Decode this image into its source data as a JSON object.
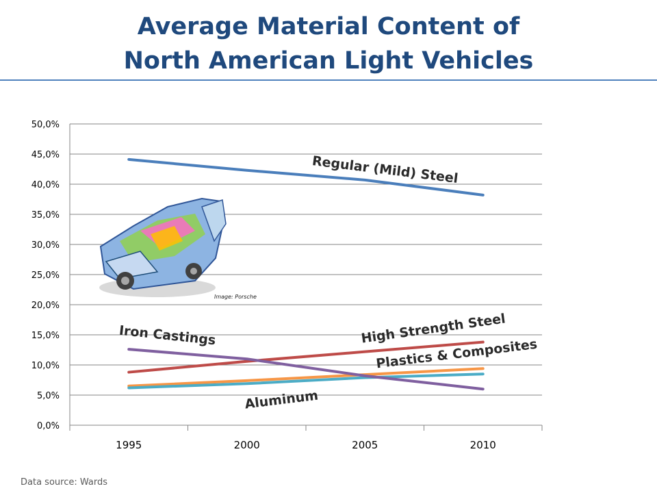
{
  "title_line1": "Average Material Content of",
  "title_line2": "North American Light Vehicles",
  "source": "Data source: Wards",
  "image_credit": "Image: Porsche",
  "chart_data": {
    "type": "line",
    "x": [
      "1995",
      "2000",
      "2005",
      "2010"
    ],
    "ylim": [
      0,
      50
    ],
    "yticks": [
      "0,0%",
      "5,0%",
      "10,0%",
      "15,0%",
      "20,0%",
      "25,0%",
      "30,0%",
      "35,0%",
      "40,0%",
      "45,0%",
      "50,0%"
    ],
    "grid": true,
    "series": [
      {
        "name": "Regular (Mild) Steel",
        "color": "#4a7ebb",
        "values": [
          44.1,
          42.3,
          40.7,
          38.2
        ]
      },
      {
        "name": "High Strength Steel",
        "color": "#be4b48",
        "values": [
          8.8,
          10.6,
          12.2,
          13.8
        ]
      },
      {
        "name": "Plastics & Composites",
        "color": "#f79646",
        "values": [
          6.5,
          7.4,
          8.4,
          9.4
        ]
      },
      {
        "name": "Aluminum",
        "color": "#4bacc6",
        "values": [
          6.2,
          6.9,
          7.9,
          8.5
        ]
      },
      {
        "name": "Iron Castings",
        "color": "#7f5f9f",
        "values": [
          12.6,
          11.0,
          8.2,
          6.0
        ]
      }
    ]
  }
}
